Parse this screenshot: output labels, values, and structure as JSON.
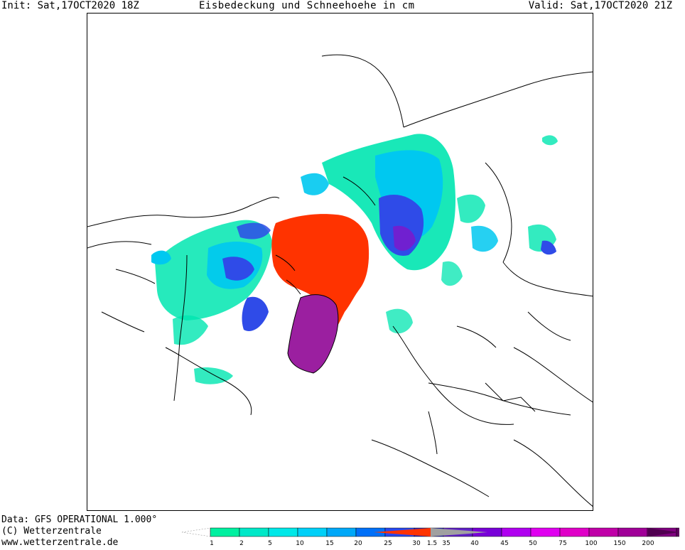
{
  "header": {
    "init": "Init: Sat,17OCT2020 18Z",
    "title": "Eisbedeckung und Schneehoehe in cm",
    "valid": "Valid: Sat,17OCT2020 21Z"
  },
  "footer": {
    "data_line": "Data: GFS OPERATIONAL 1.000°",
    "copyright": "(C) Wetterzentrale",
    "url": "www.wetterzentrale.de"
  },
  "legend": {
    "ticks": [
      "1",
      "2",
      "5",
      "10",
      "15",
      "20",
      "25",
      "30",
      "1.5",
      "35",
      "40",
      "45",
      "50",
      "75",
      "100",
      "150",
      "200"
    ],
    "snow_colors": [
      "#00f0a0",
      "#00e8c8",
      "#00e8e8",
      "#00d0f8",
      "#00a8f8",
      "#0070f8",
      "#2848f0",
      "#2020c8",
      "#6020c8",
      "#7800d8",
      "#b000f0",
      "#e000f0",
      "#e000c8",
      "#c000a8",
      "#a00098",
      "#800080",
      "#600060"
    ],
    "ice_color": "#ff3300",
    "ice_fade_color": "#a0a0a0"
  },
  "map": {
    "colors": {
      "sea_ice": "#ff3300",
      "greenland_snow": "#9b1fa0",
      "snow_light": "#00e6b0",
      "snow_mid": "#00c8f0",
      "snow_deep": "#2f4be8",
      "snow_heavy": "#7020d0",
      "outline": "#000000"
    }
  }
}
